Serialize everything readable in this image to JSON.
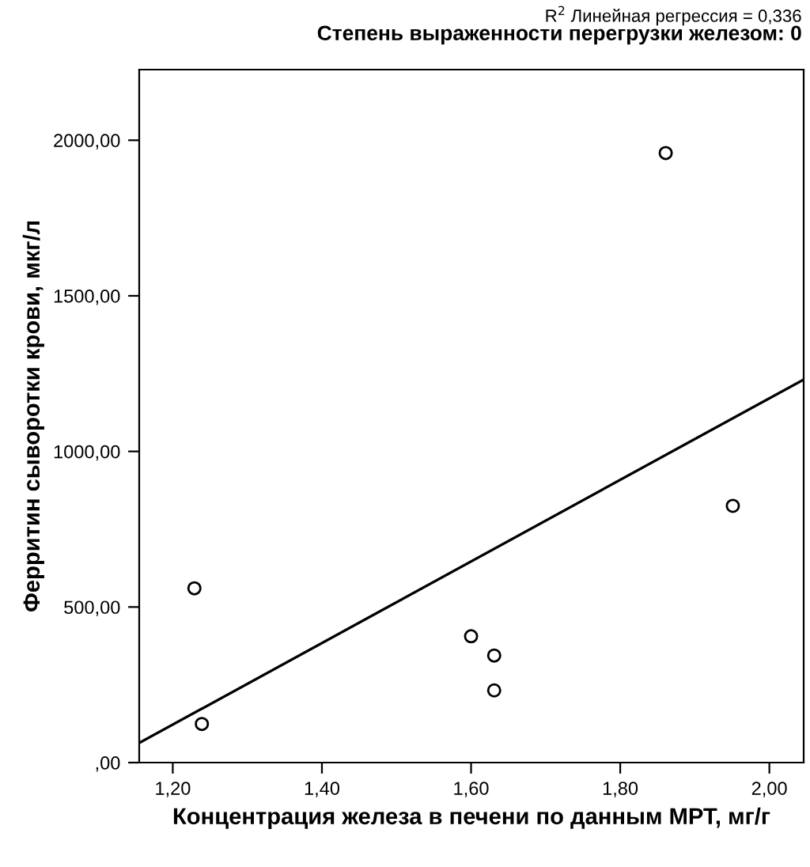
{
  "chart_data": {
    "type": "scatter",
    "title": "Степень выраженности перегрузки железом: 0",
    "annotations": [
      "R$^{2}$ Линейная регрессия = 0,336"
    ],
    "xlabel": "Концентрация железа в печени по данным МРТ, мг/г",
    "ylabel": "Ферритин сыворотки крови, мкг/л",
    "xlim": [
      1.155,
      2.046
    ],
    "ylim": [
      0,
      2227
    ],
    "xticks": [
      {
        "value": 1.2,
        "label": "1,20"
      },
      {
        "value": 1.4,
        "label": "1,40"
      },
      {
        "value": 1.6,
        "label": "1,60"
      },
      {
        "value": 1.8,
        "label": "1,80"
      },
      {
        "value": 2.0,
        "label": "2,00"
      }
    ],
    "yticks": [
      {
        "value": 0,
        "label": ",00"
      },
      {
        "value": 500,
        "label": "500,00"
      },
      {
        "value": 1000,
        "label": "1000,00"
      },
      {
        "value": 1500,
        "label": "1500,00"
      },
      {
        "value": 2000,
        "label": "2000,00"
      }
    ],
    "grid": false,
    "series": [
      {
        "marker": "circle",
        "color": "#000000",
        "x": [
          1.229,
          1.239,
          1.6,
          1.631,
          1.631,
          1.861,
          1.951
        ],
        "values": [
          560,
          124,
          406,
          344,
          232,
          1959,
          825
        ]
      },
      {
        "type": "line",
        "color": "#000000",
        "x": [
          1.155,
          2.046
        ],
        "values": [
          63,
          1231
        ]
      }
    ]
  }
}
